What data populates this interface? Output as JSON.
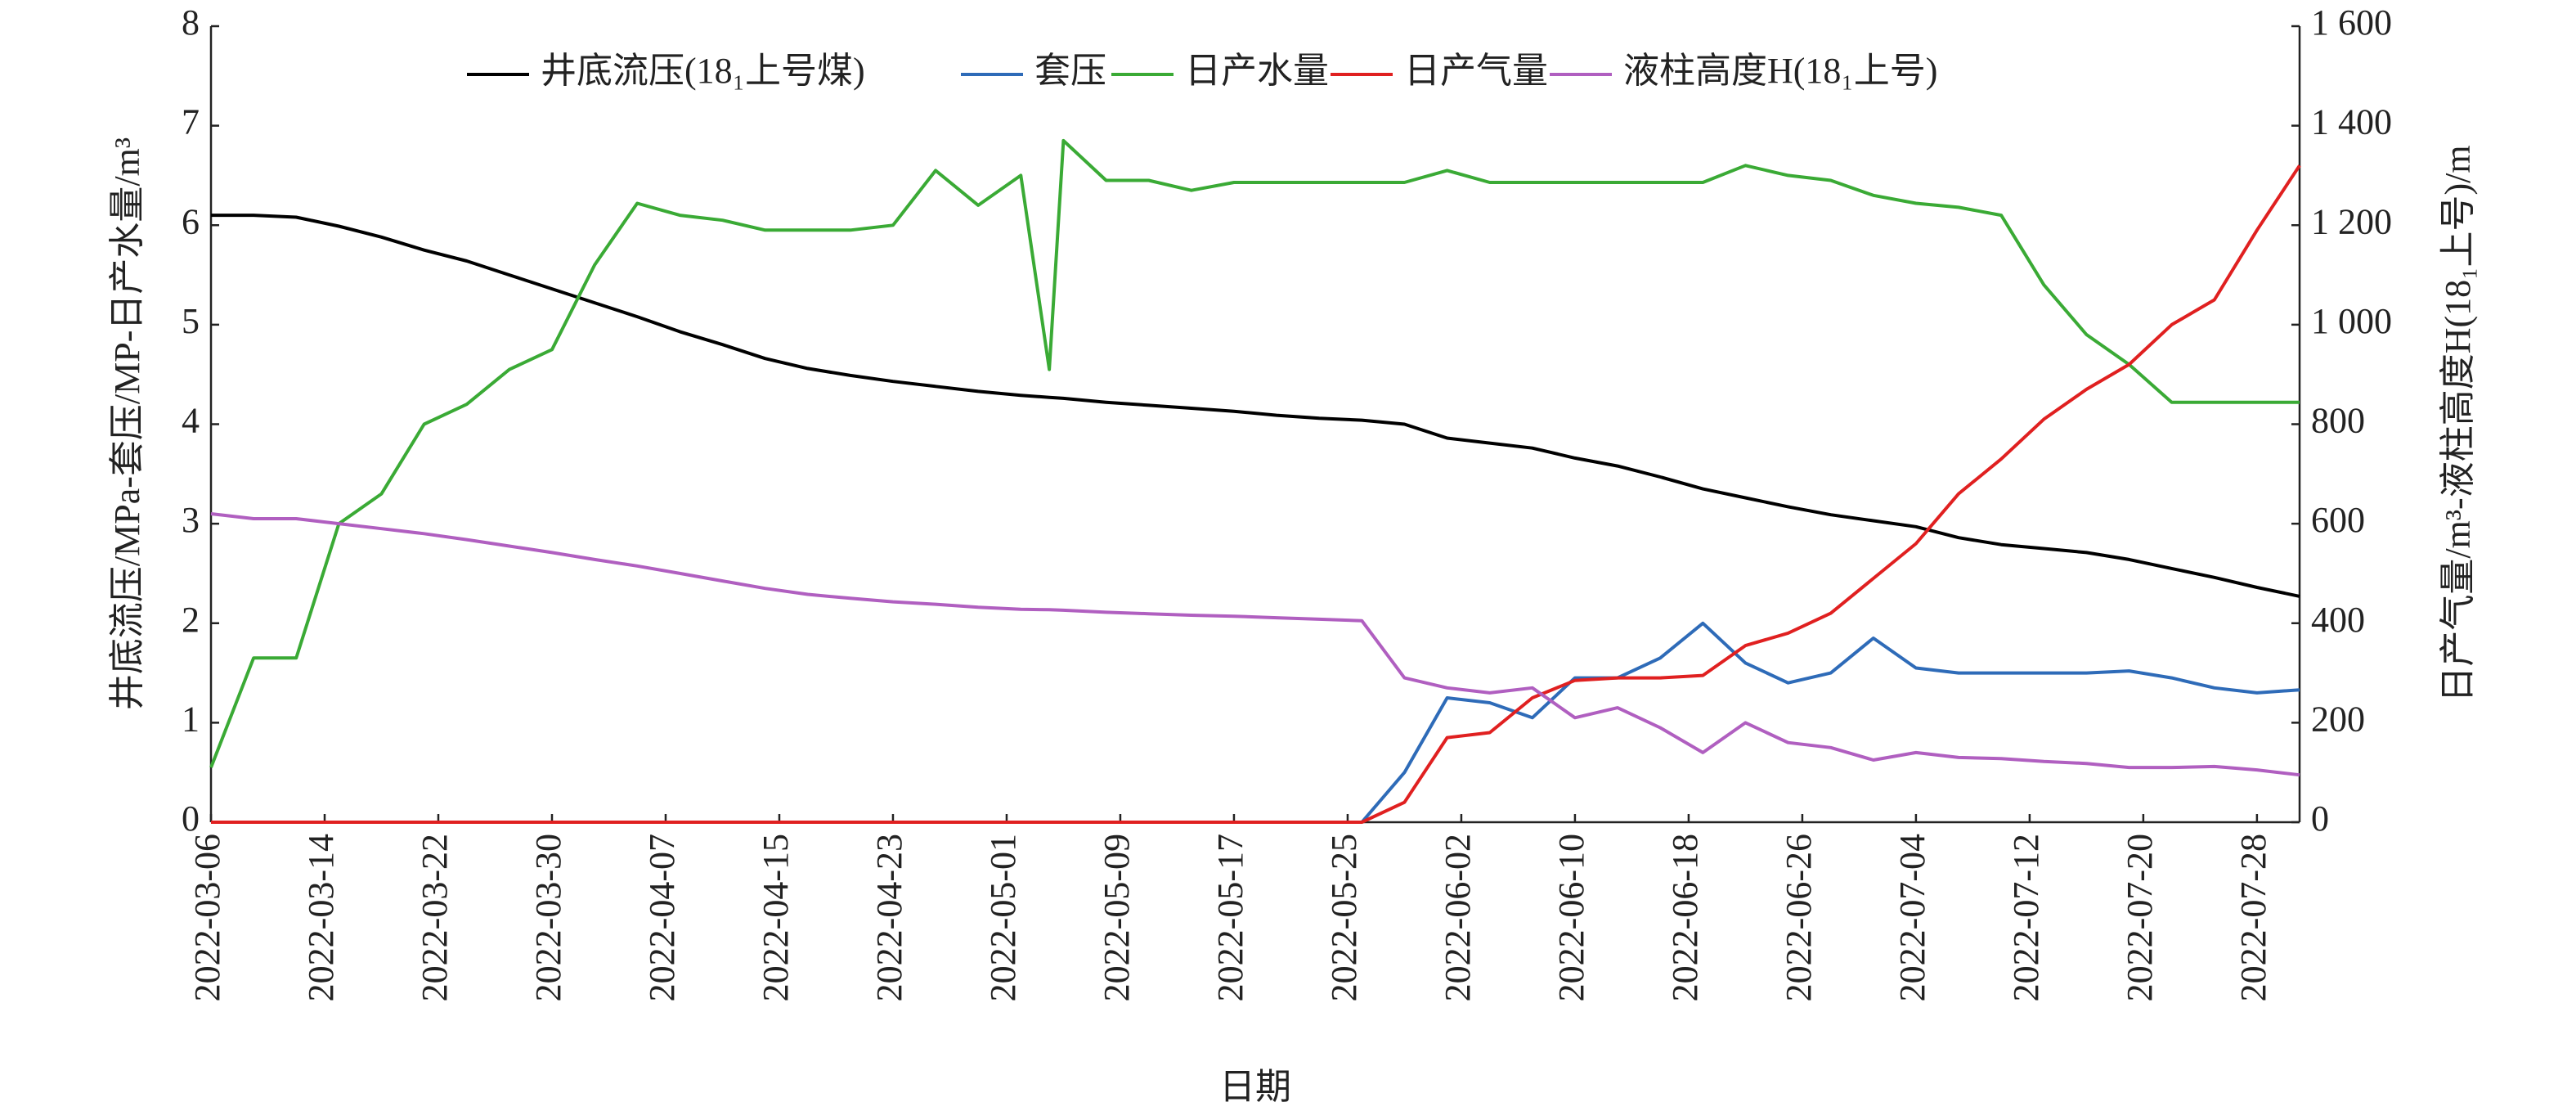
{
  "chart_data": {
    "type": "line",
    "x_label": "日期",
    "y_label": "井底流压/MPa-套压/MP-日产水量/m³",
    "y2_label": "日产气量/m³-液柱高度H(18₁上号)/m",
    "legend": "top",
    "grid": false,
    "xlim": [
      "2022-03-06",
      "2022-07-31"
    ],
    "xticks": [
      "2022-03-06",
      "2022-03-14",
      "2022-03-22",
      "2022-03-30",
      "2022-04-07",
      "2022-04-15",
      "2022-04-23",
      "2022-05-01",
      "2022-05-09",
      "2022-05-17",
      "2022-05-25",
      "2022-06-02",
      "2022-06-10",
      "2022-06-18",
      "2022-06-26",
      "2022-07-04",
      "2022-07-12",
      "2022-07-20",
      "2022-07-28"
    ],
    "ylim": [
      0,
      8
    ],
    "yticks": [
      0,
      1,
      2,
      3,
      4,
      5,
      6,
      7,
      8
    ],
    "y2lim": [
      0,
      1600
    ],
    "y2ticks": [
      0,
      200,
      400,
      600,
      800,
      {
        "value": 1000,
        "label": "1 000"
      },
      {
        "value": 1200,
        "label": "1 200"
      },
      {
        "value": 1400,
        "label": "1 400"
      },
      {
        "value": 1600,
        "label": "1 600"
      }
    ],
    "x": [
      "2022-03-06",
      "2022-03-09",
      "2022-03-12",
      "2022-03-15",
      "2022-03-18",
      "2022-03-21",
      "2022-03-24",
      "2022-03-27",
      "2022-03-30",
      "2022-04-02",
      "2022-04-05",
      "2022-04-08",
      "2022-04-11",
      "2022-04-14",
      "2022-04-17",
      "2022-04-20",
      "2022-04-23",
      "2022-04-26",
      "2022-04-29",
      "2022-05-02",
      "2022-05-04",
      "2022-05-05",
      "2022-05-08",
      "2022-05-11",
      "2022-05-14",
      "2022-05-17",
      "2022-05-20",
      "2022-05-23",
      "2022-05-26",
      "2022-05-29",
      "2022-06-01",
      "2022-06-04",
      "2022-06-07",
      "2022-06-10",
      "2022-06-13",
      "2022-06-16",
      "2022-06-19",
      "2022-06-22",
      "2022-06-25",
      "2022-06-28",
      "2022-07-01",
      "2022-07-04",
      "2022-07-07",
      "2022-07-10",
      "2022-07-13",
      "2022-07-16",
      "2022-07-19",
      "2022-07-22",
      "2022-07-25",
      "2022-07-28",
      "2022-07-31"
    ],
    "series": [
      {
        "name": "井底流压(18₁上号煤)",
        "color": "#000000",
        "values": [
          6.1,
          6.1,
          6.08,
          5.99,
          5.88,
          5.75,
          5.64,
          5.5,
          5.36,
          5.22,
          5.08,
          4.93,
          4.8,
          4.66,
          4.56,
          4.49,
          4.43,
          4.38,
          4.33,
          4.29,
          4.27,
          4.26,
          4.22,
          4.19,
          4.16,
          4.13,
          4.09,
          4.06,
          4.04,
          4.0,
          3.86,
          3.81,
          3.76,
          3.66,
          3.58,
          3.47,
          3.35,
          3.26,
          3.17,
          3.09,
          3.03,
          2.97,
          2.86,
          2.79,
          2.75,
          2.71,
          2.64,
          2.55,
          2.46,
          2.36,
          2.27
        ]
      },
      {
        "name": "套压",
        "color": "#2e6bb8",
        "values": [
          0,
          0,
          0,
          0,
          0,
          0,
          0,
          0,
          0,
          0,
          0,
          0,
          0,
          0,
          0,
          0,
          0,
          0,
          0,
          0,
          0,
          0,
          0,
          0,
          0,
          0,
          0,
          0,
          0,
          0.5,
          1.25,
          1.2,
          1.05,
          1.45,
          1.45,
          1.65,
          2.0,
          1.6,
          1.4,
          1.5,
          1.85,
          1.55,
          1.5,
          1.5,
          1.5,
          1.5,
          1.52,
          1.45,
          1.35,
          1.3,
          1.33
        ]
      },
      {
        "name": "日产水量",
        "color": "#3aaa35",
        "values": [
          0.55,
          1.65,
          1.65,
          3.0,
          3.3,
          4.0,
          4.2,
          4.55,
          4.75,
          5.6,
          6.22,
          6.1,
          6.05,
          5.95,
          5.95,
          5.95,
          6.0,
          6.55,
          6.2,
          6.5,
          4.55,
          6.85,
          6.45,
          6.45,
          6.35,
          6.43,
          6.43,
          6.43,
          6.43,
          6.43,
          6.55,
          6.43,
          6.43,
          6.43,
          6.43,
          6.43,
          6.43,
          6.6,
          6.5,
          6.45,
          6.3,
          6.22,
          6.18,
          6.1,
          5.4,
          4.9,
          4.6,
          4.22,
          4.22,
          4.22,
          4.22
        ]
      },
      {
        "name": "日产气量",
        "color": "#e02020",
        "axis": "y2",
        "values": [
          0,
          0,
          0,
          0,
          0,
          0,
          0,
          0,
          0,
          0,
          0,
          0,
          0,
          0,
          0,
          0,
          0,
          0,
          0,
          0,
          0,
          0,
          0,
          0,
          0,
          0,
          0,
          0,
          0,
          40,
          170,
          180,
          250,
          285,
          290,
          290,
          295,
          355,
          380,
          420,
          490,
          560,
          660,
          730,
          810,
          870,
          920,
          1000,
          1050,
          1190,
          1320
        ]
      },
      {
        "name": "液柱高度H(18₁上号)",
        "color": "#b05fc0",
        "axis": "y2",
        "values": [
          620,
          610,
          610,
          600,
          590,
          580,
          568,
          555,
          542,
          528,
          515,
          500,
          485,
          470,
          458,
          450,
          443,
          438,
          432,
          428,
          427,
          426,
          422,
          419,
          416,
          414,
          411,
          408,
          405,
          290,
          270,
          260,
          270,
          210,
          230,
          190,
          140,
          200,
          160,
          150,
          125,
          140,
          130,
          128,
          122,
          118,
          110,
          110,
          112,
          105,
          95
        ]
      }
    ]
  }
}
